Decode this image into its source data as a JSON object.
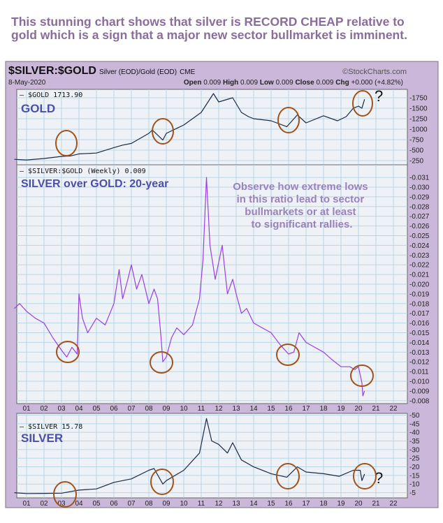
{
  "headline": {
    "line1": "This stunning chart shows that silver is RECORD CHEAP relative to",
    "line2": "gold which is a sign that a major new sector bullmarket is imminent."
  },
  "header": {
    "symbol": "$SILVER:$GOLD",
    "desc": "Silver (EOD)/Gold (EOD)",
    "exchange": "CME",
    "source": "©StockCharts.com",
    "date": "8-May-2020",
    "open_label": "Open",
    "open": "0.009",
    "high_label": "High",
    "high": "0.009",
    "low_label": "Low",
    "low": "0.009",
    "close_label": "Close",
    "close": "0.009",
    "chg_label": "Chg",
    "chg": "+0.000 (+4.82%)"
  },
  "colors": {
    "frame": "#cbb7d9",
    "plot": "#eef2f7",
    "grid": "#b8d6e6",
    "line": "#1c2a44",
    "ratio": "#9b3fe0",
    "circle": "#a0521a"
  },
  "chart_data": [
    {
      "type": "line",
      "name": "gold",
      "legend": "$GOLD 1713.90",
      "label": "GOLD",
      "ylim": [
        150,
        1950
      ],
      "yticks": [
        250,
        500,
        750,
        1000,
        1250,
        1500,
        1750
      ],
      "x": [
        2000.3,
        2001,
        2002,
        2003,
        2003.5,
        2004,
        2005,
        2006,
        2006.5,
        2007,
        2008,
        2008.2,
        2008.8,
        2009,
        2010,
        2011,
        2011.7,
        2012,
        2012.8,
        2013.3,
        2013.7,
        2014,
        2015,
        2015.9,
        2016.5,
        2017,
        2018,
        2018.8,
        2019.3,
        2019.7,
        2020,
        2020.2,
        2020.35
      ],
      "y": [
        280,
        265,
        300,
        350,
        360,
        410,
        430,
        560,
        620,
        660,
        900,
        980,
        740,
        900,
        1100,
        1400,
        1850,
        1650,
        1750,
        1400,
        1300,
        1250,
        1200,
        1060,
        1340,
        1150,
        1320,
        1200,
        1300,
        1500,
        1550,
        1500,
        1714
      ],
      "annotation": "?"
    },
    {
      "type": "line",
      "name": "ratio",
      "legend": "$SILVER:$GOLD (Weekly) 0.009",
      "label": "SILVER over GOLD: 20-year",
      "ylim": [
        0.0077,
        0.0323
      ],
      "yticks": [
        0.008,
        0.009,
        0.01,
        0.011,
        0.012,
        0.013,
        0.014,
        0.015,
        0.016,
        0.017,
        0.018,
        0.019,
        0.02,
        0.021,
        0.022,
        0.023,
        0.024,
        0.025,
        0.026,
        0.027,
        0.028,
        0.029,
        0.03,
        0.031
      ],
      "x": [
        2000.3,
        2000.6,
        2001,
        2001.5,
        2002,
        2002.5,
        2003,
        2003.3,
        2003.6,
        2003.9,
        2004.0,
        2004.2,
        2004.5,
        2005,
        2005.5,
        2006,
        2006.3,
        2006.5,
        2006.8,
        2007,
        2007.3,
        2007.6,
        2008,
        2008.3,
        2008.5,
        2008.7,
        2008.8,
        2009,
        2009.3,
        2009.6,
        2010,
        2010.5,
        2010.9,
        2011.1,
        2011.3,
        2011.5,
        2011.8,
        2012.2,
        2012.5,
        2012.8,
        2013,
        2013.3,
        2013.6,
        2014,
        2014.5,
        2015,
        2015.5,
        2016,
        2016.3,
        2016.6,
        2017,
        2017.5,
        2018,
        2018.5,
        2019,
        2019.5,
        2019.8,
        2020.0,
        2020.2,
        2020.25,
        2020.35
      ],
      "y": [
        0.0175,
        0.018,
        0.0172,
        0.0165,
        0.016,
        0.0145,
        0.0132,
        0.0125,
        0.0135,
        0.0128,
        0.019,
        0.0165,
        0.015,
        0.0165,
        0.0158,
        0.018,
        0.0215,
        0.0185,
        0.0205,
        0.022,
        0.0195,
        0.021,
        0.018,
        0.0195,
        0.0185,
        0.0145,
        0.012,
        0.0125,
        0.0145,
        0.0155,
        0.0148,
        0.0158,
        0.0185,
        0.0225,
        0.031,
        0.024,
        0.0205,
        0.024,
        0.019,
        0.0205,
        0.019,
        0.017,
        0.0175,
        0.016,
        0.0155,
        0.015,
        0.0138,
        0.0128,
        0.013,
        0.015,
        0.014,
        0.0135,
        0.013,
        0.0122,
        0.0115,
        0.0115,
        0.0112,
        0.0115,
        0.0098,
        0.0085,
        0.009
      ],
      "annotation": [
        "Observe how extreme lows",
        "in this ratio lead to sector",
        "bullmarkets or at least",
        "to significant rallies."
      ]
    },
    {
      "type": "line",
      "name": "silver",
      "legend": "$SILVER 15.78",
      "label": "SILVER",
      "ylim": [
        2,
        51
      ],
      "yticks": [
        5,
        10,
        15,
        20,
        25,
        30,
        35,
        40,
        45,
        50
      ],
      "x": [
        2000.3,
        2001,
        2002,
        2003,
        2004,
        2005,
        2006,
        2007,
        2008,
        2008.3,
        2008.8,
        2009,
        2010,
        2010.9,
        2011.3,
        2011.6,
        2012,
        2012.5,
        2012.8,
        2013.3,
        2014,
        2015,
        2015.9,
        2016.5,
        2017,
        2018,
        2018.9,
        2019.7,
        2020.1,
        2020.2,
        2020.35
      ],
      "y": [
        5,
        4.5,
        4.6,
        4.7,
        6.5,
        7.2,
        11,
        13,
        18,
        19,
        10,
        12,
        18,
        28,
        48,
        35,
        33,
        28,
        34,
        24,
        20,
        16,
        14,
        20,
        17,
        16,
        14.5,
        18,
        18,
        12,
        15.78
      ],
      "annotation": "?"
    }
  ],
  "xaxis": {
    "ticks": [
      "01",
      "02",
      "03",
      "04",
      "05",
      "06",
      "07",
      "08",
      "09",
      "10",
      "11",
      "12",
      "13",
      "14",
      "15",
      "16",
      "17",
      "18",
      "19",
      "20",
      "21",
      "22"
    ]
  }
}
